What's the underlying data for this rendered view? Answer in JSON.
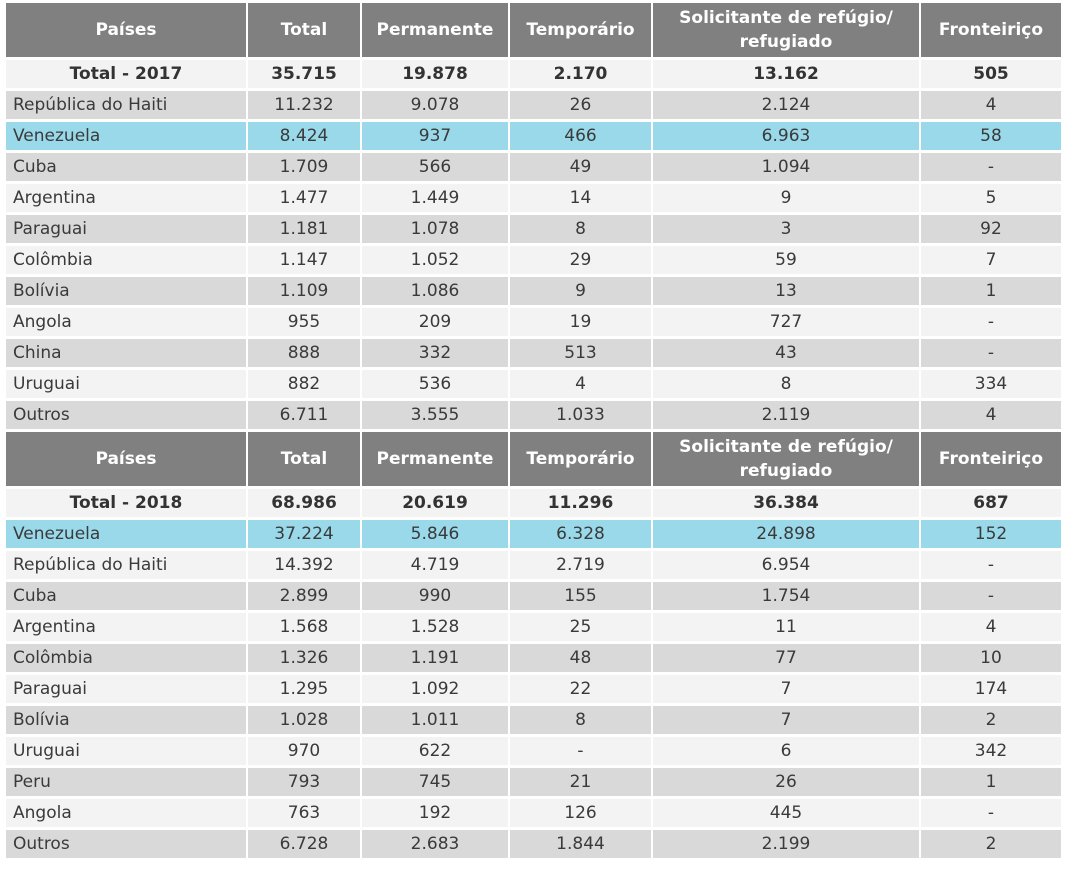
{
  "columns": [
    "Países",
    "Total",
    "Permanente",
    "Temporário",
    "Solicitante de refúgio/ refugiado",
    "Fronteiriço"
  ],
  "highlight_color": "#99d9ea",
  "header_color": "#808080",
  "sections": [
    {
      "total": [
        "Total - 2017",
        "35.715",
        "19.878",
        "2.170",
        "13.162",
        "505"
      ],
      "rows": [
        {
          "cells": [
            "República do Haiti",
            "11.232",
            "9.078",
            "26",
            "2.124",
            "4"
          ],
          "highlight": false
        },
        {
          "cells": [
            "Venezuela",
            "8.424",
            "937",
            "466",
            "6.963",
            "58"
          ],
          "highlight": true
        },
        {
          "cells": [
            "Cuba",
            "1.709",
            "566",
            "49",
            "1.094",
            "-"
          ],
          "highlight": false
        },
        {
          "cells": [
            "Argentina",
            "1.477",
            "1.449",
            "14",
            "9",
            "5"
          ],
          "highlight": false
        },
        {
          "cells": [
            "Paraguai",
            "1.181",
            "1.078",
            "8",
            "3",
            "92"
          ],
          "highlight": false
        },
        {
          "cells": [
            "Colômbia",
            "1.147",
            "1.052",
            "29",
            "59",
            "7"
          ],
          "highlight": false
        },
        {
          "cells": [
            "Bolívia",
            "1.109",
            "1.086",
            "9",
            "13",
            "1"
          ],
          "highlight": false
        },
        {
          "cells": [
            "Angola",
            "955",
            "209",
            "19",
            "727",
            "-"
          ],
          "highlight": false
        },
        {
          "cells": [
            "China",
            "888",
            "332",
            "513",
            "43",
            "-"
          ],
          "highlight": false
        },
        {
          "cells": [
            "Uruguai",
            "882",
            "536",
            "4",
            "8",
            "334"
          ],
          "highlight": false
        },
        {
          "cells": [
            "Outros",
            "6.711",
            "3.555",
            "1.033",
            "2.119",
            "4"
          ],
          "highlight": false
        }
      ]
    },
    {
      "total": [
        "Total - 2018",
        "68.986",
        "20.619",
        "11.296",
        "36.384",
        "687"
      ],
      "rows": [
        {
          "cells": [
            "Venezuela",
            "37.224",
            "5.846",
            "6.328",
            "24.898",
            "152"
          ],
          "highlight": true
        },
        {
          "cells": [
            "República do Haiti",
            "14.392",
            "4.719",
            "2.719",
            "6.954",
            "-"
          ],
          "highlight": false
        },
        {
          "cells": [
            "Cuba",
            "2.899",
            "990",
            "155",
            "1.754",
            "-"
          ],
          "highlight": false
        },
        {
          "cells": [
            "Argentina",
            "1.568",
            "1.528",
            "25",
            "11",
            "4"
          ],
          "highlight": false
        },
        {
          "cells": [
            "Colômbia",
            "1.326",
            "1.191",
            "48",
            "77",
            "10"
          ],
          "highlight": false
        },
        {
          "cells": [
            "Paraguai",
            "1.295",
            "1.092",
            "22",
            "7",
            "174"
          ],
          "highlight": false
        },
        {
          "cells": [
            "Bolívia",
            "1.028",
            "1.011",
            "8",
            "7",
            "2"
          ],
          "highlight": false
        },
        {
          "cells": [
            "Uruguai",
            "970",
            "622",
            "-",
            "6",
            "342"
          ],
          "highlight": false
        },
        {
          "cells": [
            "Peru",
            "793",
            "745",
            "21",
            "26",
            "1"
          ],
          "highlight": false
        },
        {
          "cells": [
            "Angola",
            "763",
            "192",
            "126",
            "445",
            "-"
          ],
          "highlight": false
        },
        {
          "cells": [
            "Outros",
            "6.728",
            "2.683",
            "1.844",
            "2.199",
            "2"
          ],
          "highlight": false
        }
      ]
    }
  ]
}
